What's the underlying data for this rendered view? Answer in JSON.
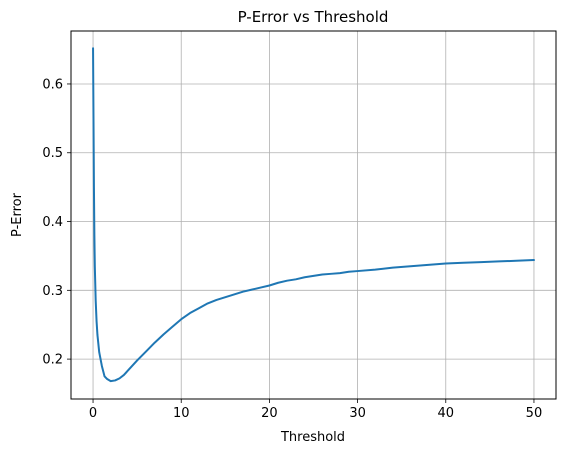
{
  "chart_data": {
    "type": "line",
    "title": "P-Error vs Threshold",
    "xlabel": "Threshold",
    "ylabel": "P-Error",
    "xlim": [
      -2.5,
      52.5
    ],
    "ylim": [
      0.142,
      0.677
    ],
    "xticks": [
      0,
      10,
      20,
      30,
      40,
      50
    ],
    "xtick_labels": [
      "0",
      "10",
      "20",
      "30",
      "40",
      "50"
    ],
    "yticks": [
      0.2,
      0.3,
      0.4,
      0.5,
      0.6
    ],
    "ytick_labels": [
      "0.2",
      "0.3",
      "0.4",
      "0.5",
      "0.6"
    ],
    "grid": true,
    "series": [
      {
        "name": "",
        "color": "#1f77b4",
        "x": [
          0.0,
          0.05,
          0.1,
          0.15,
          0.2,
          0.3,
          0.4,
          0.5,
          0.7,
          1.0,
          1.3,
          1.6,
          2.0,
          2.5,
          3.0,
          3.5,
          4.0,
          5.0,
          6.0,
          7.0,
          8.0,
          9.0,
          10.0,
          11.0,
          12.0,
          13.0,
          14.0,
          15.0,
          16.0,
          17.0,
          18.0,
          19.0,
          20.0,
          21.0,
          22.0,
          23.0,
          24.0,
          25.0,
          26.0,
          27.0,
          28.0,
          29.0,
          30.0,
          32.0,
          34.0,
          36.0,
          38.0,
          40.0,
          42.0,
          44.0,
          46.0,
          48.0,
          50.0
        ],
        "y": [
          0.652,
          0.55,
          0.45,
          0.38,
          0.335,
          0.285,
          0.255,
          0.235,
          0.21,
          0.19,
          0.175,
          0.171,
          0.168,
          0.169,
          0.172,
          0.177,
          0.184,
          0.198,
          0.211,
          0.224,
          0.236,
          0.247,
          0.258,
          0.267,
          0.274,
          0.281,
          0.286,
          0.29,
          0.294,
          0.298,
          0.301,
          0.304,
          0.307,
          0.311,
          0.314,
          0.316,
          0.319,
          0.321,
          0.323,
          0.324,
          0.325,
          0.327,
          0.328,
          0.33,
          0.333,
          0.335,
          0.337,
          0.339,
          0.34,
          0.341,
          0.342,
          0.343,
          0.344
        ]
      }
    ]
  }
}
